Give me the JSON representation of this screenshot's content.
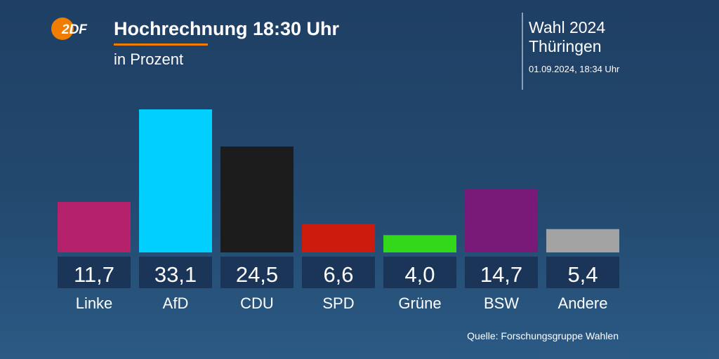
{
  "brand": {
    "logo_text": "2DF",
    "logo_color": "#f07c00"
  },
  "header": {
    "title": "Hochrechnung 18:30 Uhr",
    "subtitle": "in Prozent",
    "election_name": "Wahl 2024\nThüringen",
    "timestamp": "01.09.2024, 18:34 Uhr"
  },
  "source": "Quelle: Forschungsgruppe Wahlen",
  "chart_data": {
    "type": "bar",
    "title": "Hochrechnung 18:30 Uhr",
    "subtitle": "in Prozent",
    "categories": [
      "Linke",
      "AfD",
      "CDU",
      "SPD",
      "Grüne",
      "BSW",
      "Andere"
    ],
    "values": [
      11.7,
      33.1,
      24.5,
      6.6,
      4.0,
      14.7,
      5.4
    ],
    "value_labels": [
      "11,7",
      "33,1",
      "24,5",
      "6,6",
      "4,0",
      "14,7",
      "5,4"
    ],
    "colors": [
      "#b4226b",
      "#00cfff",
      "#1c1c1c",
      "#cc1a0c",
      "#34d81a",
      "#7a1a78",
      "#a3a3a3"
    ],
    "xlabel": "",
    "ylabel": "",
    "ylim": [
      0,
      33.1
    ],
    "grid": false,
    "legend": "none"
  }
}
